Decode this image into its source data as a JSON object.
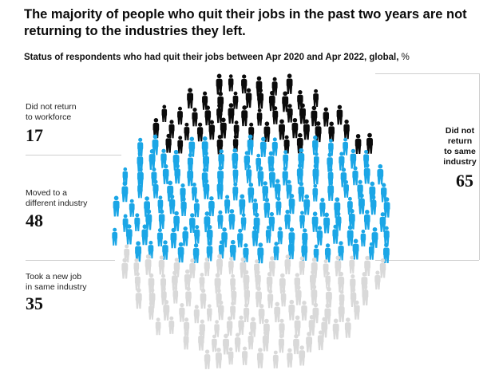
{
  "title": "The majority of people who quit their jobs in the past two years are not returning to the industries they left.",
  "subtitle": "Status of respondents who had quit their jobs between Apr 2020 and Apr 2022, global,",
  "subtitle_unit": "%",
  "colors": {
    "did_not_return": "#0b0b0b",
    "different_industry": "#1ba6e6",
    "same_industry": "#d9d9d9"
  },
  "chart_data": {
    "type": "pictogram",
    "unit": "%",
    "categories": [
      {
        "label": "Did not return to workforce",
        "line1": "Did not return",
        "line2": "to workforce",
        "value": 17
      },
      {
        "label": "Moved to a different industry",
        "line1": "Moved to a",
        "line2": "different industry",
        "value": 48
      },
      {
        "label": "Took a new job in same industry",
        "line1": "Took a new job",
        "line2": "in same industry",
        "value": 35
      }
    ],
    "bracket": {
      "line1": "Did not",
      "line2": "return",
      "line3": "to same",
      "line4": "industry",
      "value": 65
    }
  }
}
